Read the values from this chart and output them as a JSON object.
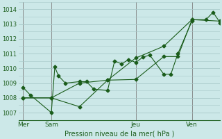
{
  "background_color": "#cce8e8",
  "grid_color": "#a8c8c8",
  "line_color": "#1a5c1a",
  "xlabel": "Pression niveau de la mer( hPa )",
  "ylabel_ticks": [
    1007,
    1008,
    1009,
    1010,
    1011,
    1012,
    1013,
    1014
  ],
  "x_tick_labels": [
    "Mer",
    "Sam",
    "Jeu",
    "Ven"
  ],
  "x_tick_positions": [
    0,
    24,
    96,
    144
  ],
  "xmin": -4,
  "xmax": 168,
  "ymin": 1006.5,
  "ymax": 1014.5,
  "series1_x": [
    0,
    6,
    24,
    27,
    30,
    36,
    48,
    54,
    60,
    72,
    78,
    84,
    90,
    96,
    102,
    108,
    120,
    126,
    132,
    144
  ],
  "series1_y": [
    1008.7,
    1008.2,
    1007.0,
    1010.1,
    1009.5,
    1009.0,
    1009.1,
    1009.1,
    1008.6,
    1008.5,
    1010.5,
    1010.3,
    1010.6,
    1010.4,
    1010.75,
    1010.9,
    1009.6,
    1009.6,
    1011.0,
    1013.2
  ],
  "series2_x": [
    0,
    24,
    48,
    72,
    96,
    120,
    144,
    168
  ],
  "series2_y": [
    1008.0,
    1008.0,
    1007.4,
    1009.2,
    1010.7,
    1011.5,
    1013.3,
    1013.2
  ],
  "series3_x": [
    0,
    24,
    48,
    72,
    96,
    120,
    132,
    144,
    156,
    162,
    168,
    174
  ],
  "series3_y": [
    1008.0,
    1008.0,
    1009.0,
    1009.2,
    1009.25,
    1010.8,
    1010.8,
    1013.3,
    1013.3,
    1013.8,
    1013.1,
    1013.3
  ]
}
